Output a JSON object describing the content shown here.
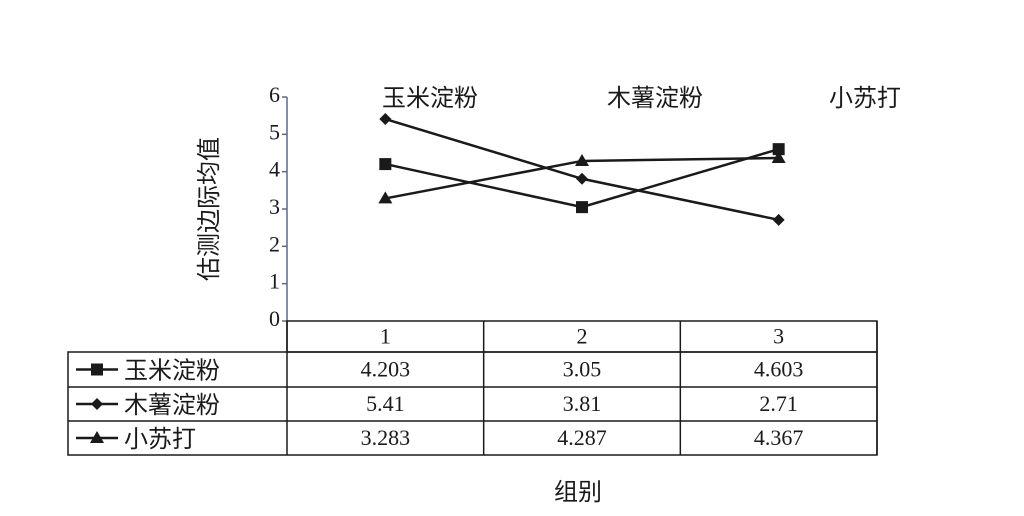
{
  "chart_data": {
    "type": "line",
    "x_label": "组别",
    "y_label": "估测边际均值",
    "annotations": [
      "玉米淀粉",
      "木薯淀粉",
      "小苏打"
    ],
    "categories": [
      "1",
      "2",
      "3"
    ],
    "series": [
      {
        "name": "玉米淀粉",
        "color": "#1a1a1a",
        "marker": "square",
        "values": [
          4.203,
          3.05,
          4.603
        ]
      },
      {
        "name": "木薯淀粉",
        "color": "#1a1a1a",
        "marker": "diamond",
        "values": [
          5.41,
          3.81,
          2.71
        ]
      },
      {
        "name": "小苏打",
        "color": "#1a1a1a",
        "marker": "triangle",
        "values": [
          3.283,
          4.287,
          4.367
        ]
      }
    ],
    "ylim": [
      0,
      6
    ],
    "yticks": [
      0,
      1,
      2,
      3,
      4,
      5,
      6
    ],
    "data_table": true
  }
}
